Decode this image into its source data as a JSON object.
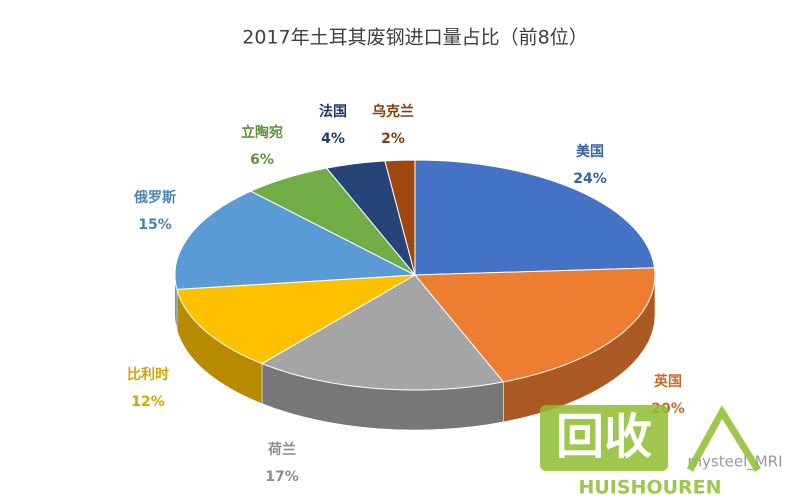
{
  "chart_data": {
    "type": "pie3d",
    "title": "2017年土耳其废钢进口量占比（前8位）",
    "categories": [
      "美国",
      "英国",
      "荷兰",
      "比利时",
      "俄罗斯",
      "立陶宛",
      "法国",
      "乌克兰"
    ],
    "values": [
      24,
      20,
      17,
      12,
      15,
      6,
      4,
      2
    ],
    "value_labels": [
      "24%",
      "20%",
      "17%",
      "12%",
      "15%",
      "6%",
      "4%",
      "2%"
    ],
    "colors": [
      "#4472c4",
      "#ed7d31",
      "#a5a5a5",
      "#ffc000",
      "#5b9bd5",
      "#70ad47",
      "#264478",
      "#9e480e"
    ],
    "source": "mysteel_MRI"
  },
  "watermark": {
    "logo": "回收",
    "text": "HUISHOUREN"
  }
}
